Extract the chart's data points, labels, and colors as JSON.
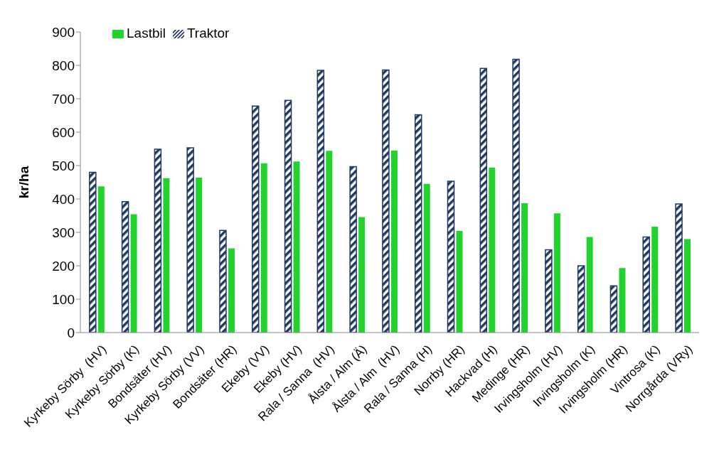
{
  "chart_data": {
    "type": "bar",
    "ylabel": "kr/ha",
    "categories": [
      "Kyrkeby Sörby  (HV)",
      "Kyrkeby Sörby (K)",
      "Bondsäter (HV)",
      "Kyrkeby Sörby (VV)",
      "Bondsäter (HR)",
      "Ekeby (VV)",
      "Ekeby (HV)",
      "Rala / Sanna  (HV)",
      "Ålsta / Alm (Ä)",
      "Ålsta / Alm  (HV)",
      "Rala / Sanna (H)",
      "Norrby (HR)",
      "Hackvad (H)",
      "Medinge (HR)",
      "Irvingsholm (HV)",
      "Irvingsholm (K)",
      "Irvingsholm (HR)",
      "Vintrosa (K)",
      "Norrgårda (VRy)"
    ],
    "series": [
      {
        "name": "Traktor",
        "color": "#1f3864",
        "values": [
          480,
          392,
          549,
          553,
          306,
          678,
          695,
          785,
          497,
          786,
          652,
          453,
          791,
          818,
          248,
          200,
          140,
          286,
          385
        ]
      },
      {
        "name": "Lastbil",
        "color": "#22d32e",
        "values": [
          438,
          354,
          462,
          464,
          252,
          507,
          512,
          544,
          346,
          545,
          445,
          304,
          494,
          387,
          357,
          286,
          193,
          317,
          280
        ]
      }
    ],
    "ylim": [
      0,
      900
    ],
    "yticks": [
      0,
      100,
      200,
      300,
      400,
      500,
      600,
      700,
      800,
      900
    ],
    "grid": false,
    "legend": "top left"
  }
}
